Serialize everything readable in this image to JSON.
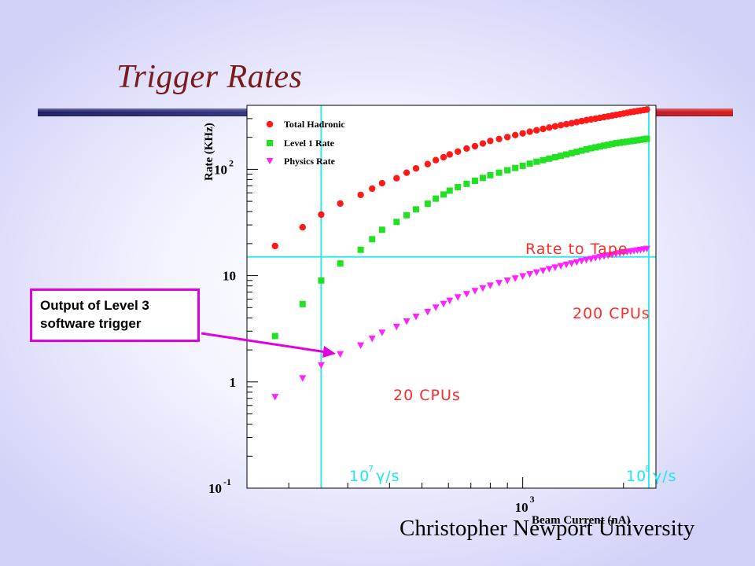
{
  "slide": {
    "title": "Trigger Rates",
    "footer": "Christopher Newport University",
    "callout": {
      "line1": "Output of Level 3",
      "line2": "software trigger"
    }
  },
  "colors": {
    "title": "#7a1b1b",
    "total_hadronic": "#ff1a1a",
    "level1": "#22e022",
    "physics": "#ff22ff",
    "guide": "#33e8f0",
    "callout_border": "#e000e0"
  },
  "chart_data": {
    "type": "scatter",
    "x_scale": "log",
    "y_scale": "log",
    "xlim": [
      150,
      2500
    ],
    "ylim": [
      0.1,
      400
    ],
    "xlabel": "Beam Current (nA)",
    "ylabel": "Rate (KHz)",
    "x_ticks": [
      {
        "base": "10",
        "exp": "3",
        "value": 1000
      }
    ],
    "y_ticks": [
      {
        "base": "10",
        "exp": "-1",
        "value": 0.1
      },
      {
        "base": "1",
        "exp": "",
        "value": 1
      },
      {
        "base": "10",
        "exp": "",
        "value": 10
      },
      {
        "base": "10",
        "exp": "2",
        "value": 100
      }
    ],
    "legend_position": "top-left",
    "x": [
      182,
      220,
      250,
      285,
      328,
      355,
      380,
      420,
      450,
      480,
      520,
      550,
      580,
      605,
      640,
      680,
      720,
      760,
      800,
      850,
      900,
      950,
      1000,
      1050,
      1100,
      1150,
      1200,
      1250,
      1300,
      1350,
      1400,
      1450,
      1500,
      1550,
      1600,
      1650,
      1700,
      1750,
      1800,
      1850,
      1900,
      1950,
      2000,
      2050,
      2100,
      2150,
      2200,
      2250,
      2300,
      2350
    ],
    "series": [
      {
        "name": "Total Hadronic",
        "marker": "circle",
        "values": [
          19,
          28.5,
          37.5,
          47.7,
          57.5,
          65.8,
          74,
          82.5,
          93,
          102,
          112,
          122,
          130,
          138,
          147,
          157,
          165,
          175,
          185,
          193,
          201,
          210,
          218,
          226,
          233,
          240,
          247,
          254,
          260,
          266,
          272,
          278,
          284,
          290,
          295,
          300,
          305,
          310,
          315,
          320,
          325,
          330,
          335,
          340,
          345,
          349,
          353,
          357,
          361,
          365
        ]
      },
      {
        "name": "Level 1 Rate",
        "marker": "square",
        "values": [
          2.7,
          5.4,
          9,
          13,
          17.5,
          22,
          27,
          32,
          37,
          42,
          47.5,
          53,
          58,
          63,
          68,
          73,
          78,
          83,
          88,
          93,
          98,
          103,
          108,
          113,
          118,
          122,
          126,
          130,
          134,
          138,
          142,
          146,
          150,
          154,
          158,
          161,
          164,
          167,
          170,
          173,
          176,
          178,
          180,
          182,
          184,
          186,
          188,
          190,
          192,
          194
        ]
      },
      {
        "name": "Physics Rate",
        "marker": "triangle",
        "values": [
          0.72,
          1.08,
          1.43,
          1.82,
          2.2,
          2.55,
          2.9,
          3.3,
          3.7,
          4.1,
          4.55,
          5.0,
          5.4,
          5.8,
          6.25,
          6.7,
          7.15,
          7.6,
          8.05,
          8.5,
          8.95,
          9.4,
          9.85,
          10.3,
          10.7,
          11.1,
          11.5,
          11.9,
          12.3,
          12.65,
          13.0,
          13.35,
          13.7,
          14.0,
          14.3,
          14.6,
          14.9,
          15.2,
          15.45,
          15.7,
          15.95,
          16.2,
          16.45,
          16.65,
          16.85,
          17.05,
          17.25,
          17.45,
          17.65,
          17.85
        ]
      }
    ],
    "guides": {
      "rate_to_tape": 15,
      "rate_to_tape_label": "Rate to Tape",
      "vertical_lines": [
        {
          "x": 250,
          "label_base": "10",
          "label_exp": "7",
          "label_rest": "γ/s"
        },
        {
          "x": 2380,
          "label_base": "10",
          "label_exp": "8",
          "label_rest": "γ/s"
        }
      ]
    },
    "annotations": {
      "cpus_200": "200 CPUs",
      "cpus_20": "20 CPUs"
    }
  }
}
